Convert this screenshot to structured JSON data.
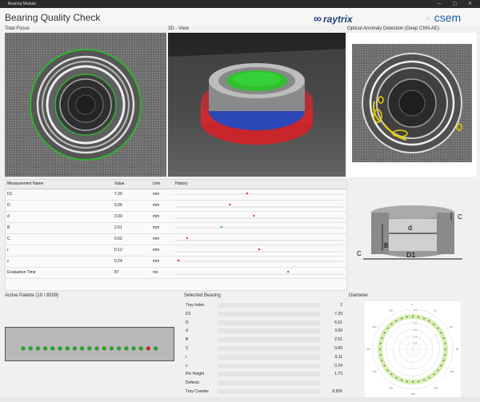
{
  "window": {
    "title": "Bearing Module",
    "controls": "— ▢ ✕"
  },
  "app": {
    "title": "Bearing Quality Check"
  },
  "logos": {
    "raytrix": "raytrix",
    "csem": "csem"
  },
  "panels": {
    "total_focus": "Total Focus",
    "view_3d": "3D - View",
    "anomaly": "Optical Anomaly Detection (Deep CNN-AE)"
  },
  "measurements": {
    "headers": [
      "Measurement Name",
      "Value",
      "Unit",
      "History"
    ],
    "rows": [
      {
        "name": "D1",
        "value": "7.29",
        "unit": "mm",
        "history_marker": 0.42
      },
      {
        "name": "D",
        "value": "6.06",
        "unit": "mm",
        "history_marker": 0.32
      },
      {
        "name": "d",
        "value": "3.00",
        "unit": "mm",
        "history_marker": 0.46
      },
      {
        "name": "B",
        "value": "2.51",
        "unit": "mm",
        "history_marker": 0.27
      },
      {
        "name": "C",
        "value": "0.62",
        "unit": "mm",
        "history_marker": 0.07
      },
      {
        "name": "r",
        "value": "0.12",
        "unit": "mm",
        "history_marker": 0.49
      },
      {
        "name": "c",
        "value": "0.24",
        "unit": "mm",
        "history_marker": 0.02
      },
      {
        "name": "Evaluation Time",
        "value": "87",
        "unit": "ms",
        "history_marker": 0.66
      }
    ]
  },
  "diagram": {
    "labels": {
      "d": "d",
      "D": "D",
      "B": "B",
      "C_right": "C",
      "C_left": "C",
      "D1": "D1"
    }
  },
  "palette": {
    "title": "Active Palette (19 / 8509)",
    "slots": 19,
    "highlight_index": 17
  },
  "selected": {
    "title": "Selected Bearing",
    "rows": [
      {
        "label": "Tray Index",
        "value": "2"
      },
      {
        "label": "D1",
        "value": "7.29"
      },
      {
        "label": "D",
        "value": "6.01"
      },
      {
        "label": "d",
        "value": "3.00"
      },
      {
        "label": "B",
        "value": "2.51"
      },
      {
        "label": "C",
        "value": "0.60"
      },
      {
        "label": "r",
        "value": "0.11"
      },
      {
        "label": "c",
        "value": "0.24"
      },
      {
        "label": "Pin Height",
        "value": "1.73"
      },
      {
        "label": "Defects",
        "value": ""
      },
      {
        "label": "Tray Counter",
        "value": "8,506"
      }
    ]
  },
  "diameter": {
    "title": "Diameter",
    "ring_labels": [
      "2.2",
      "2.4",
      "2.6",
      "2.8",
      "3.0",
      "3.2"
    ],
    "angle_labels": [
      "0",
      "30",
      "60",
      "90",
      "120",
      "150",
      "180",
      "210",
      "240",
      "270",
      "300",
      "330"
    ]
  },
  "colors": {
    "accent_green": "#22b022",
    "defect_red": "#e02020",
    "anomaly_yellow": "#e8d000"
  }
}
